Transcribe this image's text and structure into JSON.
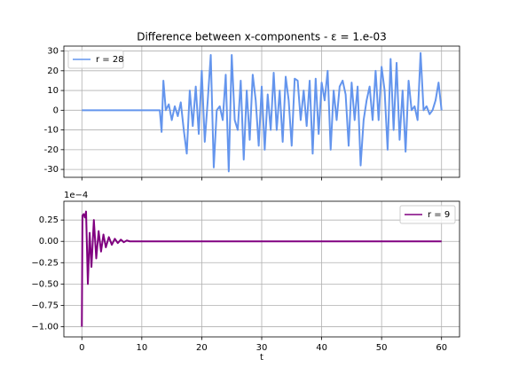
{
  "chart_data": [
    {
      "type": "line",
      "title": "Difference between x-components - ε = 1.e-03",
      "x": [
        0,
        13,
        13.3,
        13.6,
        14,
        14.5,
        15,
        15.5,
        16,
        16.5,
        17,
        17.5,
        18,
        18.5,
        19,
        19.5,
        20,
        20.5,
        21,
        21.5,
        22,
        22.5,
        23,
        23.5,
        24,
        24.5,
        25,
        25.5,
        26,
        26.5,
        27,
        27.5,
        28,
        28.5,
        29,
        29.5,
        30,
        30.5,
        31,
        31.5,
        32,
        32.5,
        33,
        33.5,
        34,
        34.5,
        35,
        35.5,
        36,
        36.5,
        37,
        37.5,
        38,
        38.5,
        39,
        39.5,
        40,
        40.5,
        41,
        41.5,
        42,
        42.5,
        43,
        43.5,
        44,
        44.5,
        45,
        45.5,
        46,
        46.5,
        47,
        47.5,
        48,
        48.5,
        49,
        49.5,
        50,
        50.5,
        51,
        51.5,
        52,
        52.5,
        53,
        53.5,
        54,
        54.5,
        55,
        55.5,
        56,
        56.5,
        57,
        57.5,
        58,
        58.5,
        59,
        59.5,
        60
      ],
      "series": [
        {
          "name": "r = 28",
          "color": "#6495ed",
          "values": [
            0,
            0,
            -11,
            15,
            0,
            3,
            -5,
            2,
            -3,
            4,
            -10,
            -22,
            10,
            -8,
            12,
            -12,
            20,
            -16,
            5,
            28,
            -29,
            0,
            2,
            -5,
            18,
            -31,
            28,
            -5,
            -10,
            15,
            -25,
            10,
            -15,
            18,
            5,
            -18,
            12,
            -20,
            8,
            -10,
            19,
            -10,
            10,
            -16,
            17,
            5,
            -18,
            16,
            15,
            -5,
            10,
            -8,
            15,
            -22,
            16,
            -12,
            14,
            5,
            20,
            -20,
            10,
            -5,
            12,
            15,
            8,
            -18,
            14,
            -5,
            12,
            -28,
            -5,
            5,
            12,
            -5,
            20,
            -5,
            22,
            10,
            -20,
            26,
            -10,
            24,
            -15,
            10,
            -21,
            15,
            0,
            2,
            -5,
            29,
            0,
            2,
            -2,
            0,
            5,
            14,
            0
          ]
        }
      ],
      "xlim": [
        -3,
        63
      ],
      "ylim": [
        -34,
        32.5
      ],
      "yticks": [
        -30,
        -20,
        -10,
        0,
        10,
        20,
        30
      ],
      "xticks": [
        0,
        10,
        20,
        30,
        40,
        50,
        60
      ],
      "grid": true,
      "legend": "upper left"
    },
    {
      "type": "line",
      "xlabel": "t",
      "offset_label": "1e−4",
      "x": [
        0,
        0.1,
        0.3,
        0.5,
        0.7,
        1.0,
        1.3,
        1.6,
        2.0,
        2.4,
        2.8,
        3.2,
        3.6,
        4.0,
        4.5,
        5.0,
        5.5,
        6.0,
        6.5,
        7.0,
        7.5,
        8,
        60
      ],
      "series": [
        {
          "name": "r = 9",
          "color": "#800080",
          "values": [
            -1.0,
            0.3,
            0.32,
            0.28,
            0.35,
            -0.5,
            0.1,
            -0.3,
            0.25,
            -0.2,
            0.12,
            -0.12,
            0.08,
            -0.07,
            0.05,
            -0.04,
            0.03,
            -0.02,
            0.02,
            -0.01,
            0.01,
            0,
            0
          ]
        }
      ],
      "xlim": [
        -3,
        63
      ],
      "ylim": [
        -1.12,
        0.47
      ],
      "yticks": [
        {
          "value": -1,
          "label": "−1.00"
        },
        {
          "value": -0.75,
          "label": "−0.75"
        },
        {
          "value": -0.5,
          "label": "−0.50"
        },
        {
          "value": -0.25,
          "label": "−0.25"
        },
        {
          "value": 0,
          "label": "0.00"
        },
        {
          "value": 0.25,
          "label": "0.25"
        }
      ],
      "xticks": [
        0,
        10,
        20,
        30,
        40,
        50,
        60
      ],
      "grid": true,
      "legend": "upper right"
    }
  ]
}
